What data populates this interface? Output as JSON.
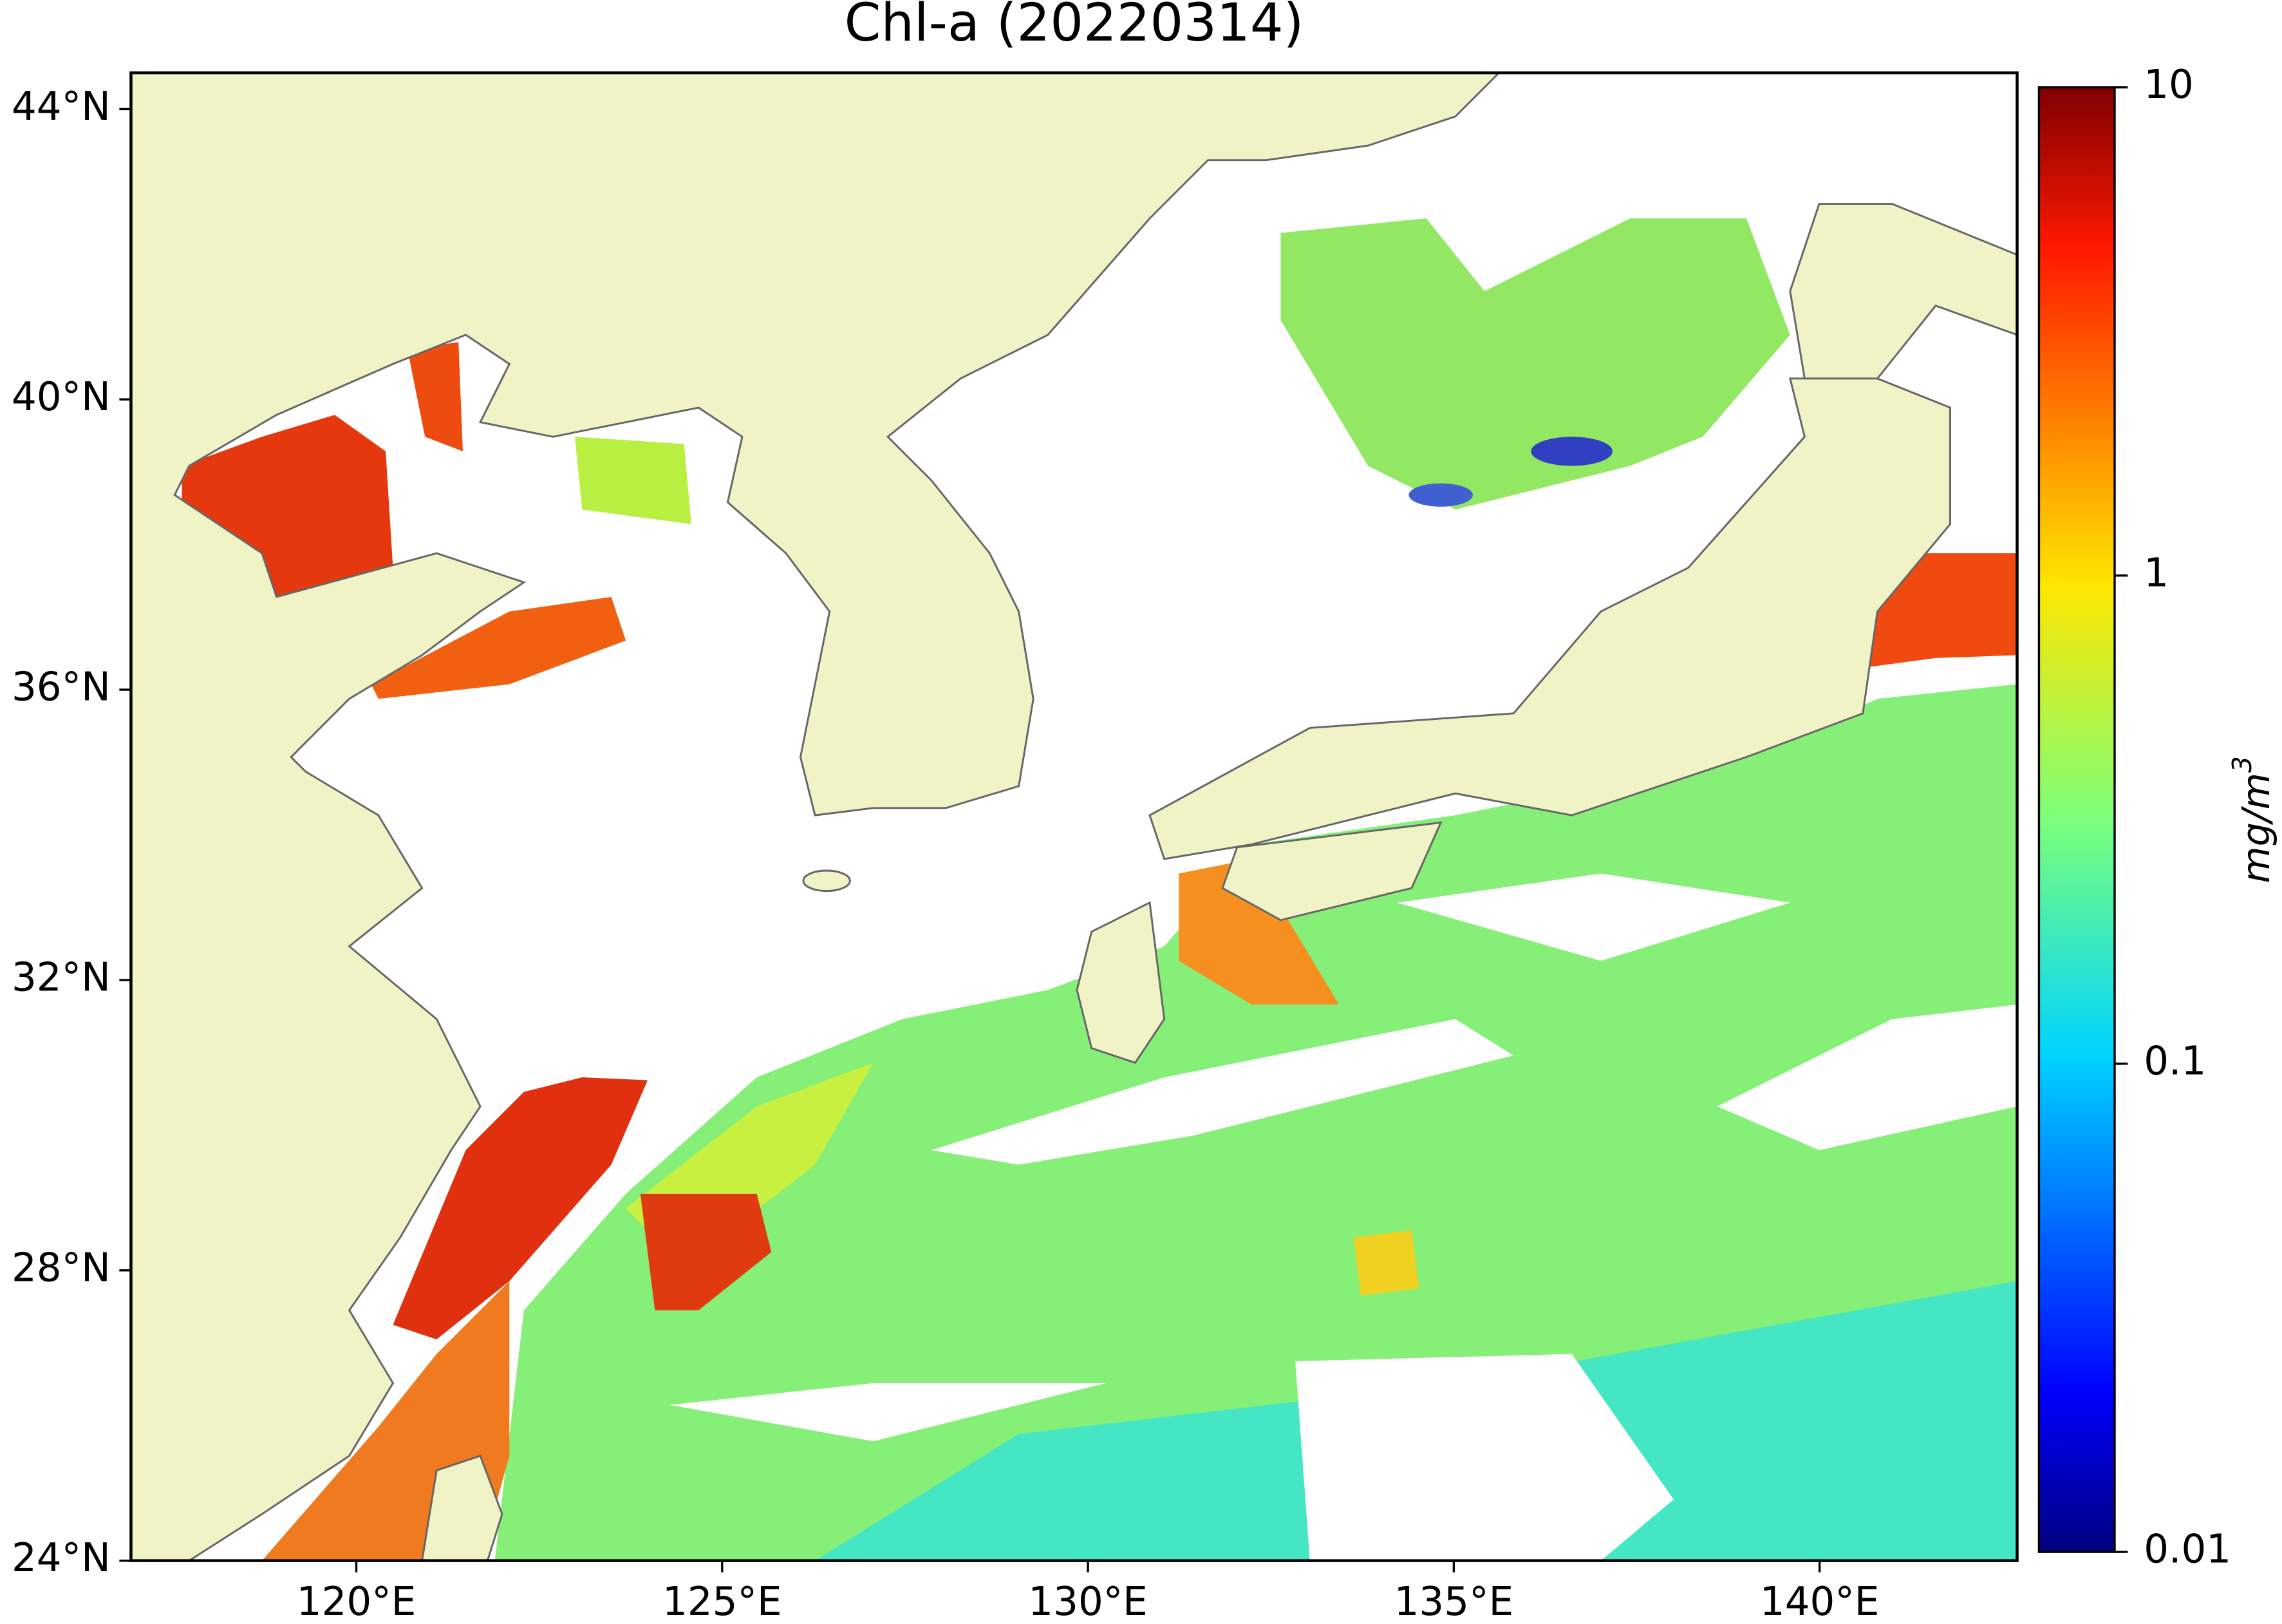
{
  "chart_data": {
    "type": "map",
    "title": "Chl-a (20220314)",
    "xlim": [
      116.92,
      142.7
    ],
    "ylim": [
      24,
      44.5
    ],
    "xticks": [
      {
        "value": 120,
        "label": "120°E"
      },
      {
        "value": 125,
        "label": "125°E"
      },
      {
        "value": 130,
        "label": "130°E"
      },
      {
        "value": 135,
        "label": "135°E"
      },
      {
        "value": 140,
        "label": "140°E"
      }
    ],
    "yticks": [
      {
        "value": 24,
        "label": "24°N"
      },
      {
        "value": 28,
        "label": "28°N"
      },
      {
        "value": 32,
        "label": "32°N"
      },
      {
        "value": 36,
        "label": "36°N"
      },
      {
        "value": 40,
        "label": "40°N"
      },
      {
        "value": 44,
        "label": "44°N"
      }
    ],
    "colorbar": {
      "scale": "log",
      "lim": [
        0.01,
        10
      ],
      "ticks": [
        0.01,
        0.1,
        1,
        10
      ],
      "label": "mg/m",
      "label_exponent": "3"
    }
  }
}
